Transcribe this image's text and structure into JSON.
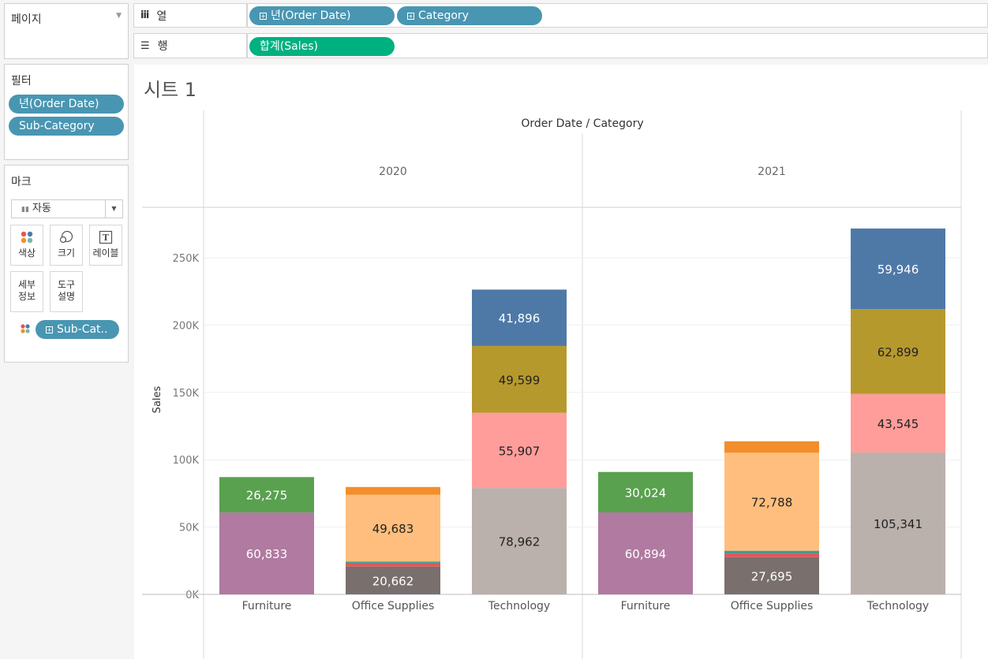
{
  "pages_panel": {
    "title": "페이지"
  },
  "columns_shelf": {
    "label": "열",
    "pills": [
      "년(Order Date)",
      "Category"
    ]
  },
  "rows_shelf": {
    "label": "행",
    "pills": [
      "합계(Sales)"
    ]
  },
  "filters_panel": {
    "title": "필터",
    "pills": [
      "년(Order Date)",
      "Sub-Category"
    ]
  },
  "marks_panel": {
    "title": "마크",
    "mark_type": "자동",
    "buttons": {
      "color": "색상",
      "size": "크기",
      "label": "레이블",
      "detail_1": "세부",
      "detail_2": "정보",
      "tooltip_1": "도구",
      "tooltip_2": "설명"
    },
    "color_pill": "Sub-Cat.."
  },
  "sheet": {
    "title": "시트 1"
  },
  "chart_data": {
    "type": "bar",
    "stacked": true,
    "title": "Order Date / Category",
    "ylabel": "Sales",
    "ylim": [
      0,
      280000
    ],
    "yticks": [
      {
        "v": 0,
        "label": "0K"
      },
      {
        "v": 50000,
        "label": "50K"
      },
      {
        "v": 100000,
        "label": "100K"
      },
      {
        "v": 150000,
        "label": "150K"
      },
      {
        "v": 200000,
        "label": "200K"
      },
      {
        "v": 250000,
        "label": "250K"
      }
    ],
    "panes": [
      {
        "year": "2020",
        "categories": [
          {
            "name": "Furniture",
            "segments": [
              {
                "value": 60833,
                "color": "#b07aa1",
                "label": "60,833",
                "dark": false
              },
              {
                "value": 26275,
                "color": "#59a14f",
                "label": "26,275",
                "dark": false
              }
            ]
          },
          {
            "name": "Office Supplies",
            "segments": [
              {
                "value": 20662,
                "color": "#79706e",
                "label": "20,662",
                "dark": false
              },
              {
                "value": 2200,
                "color": "#e15759",
                "label": "",
                "dark": false
              },
              {
                "value": 1500,
                "color": "#499894",
                "label": "",
                "dark": false
              },
              {
                "value": 49683,
                "color": "#ffbe7d",
                "label": "49,683",
                "dark": true
              },
              {
                "value": 5700,
                "color": "#f28e2b",
                "label": "",
                "dark": false
              }
            ]
          },
          {
            "name": "Technology",
            "segments": [
              {
                "value": 78962,
                "color": "#bab0ac",
                "label": "78,962",
                "dark": true
              },
              {
                "value": 55907,
                "color": "#ff9d9a",
                "label": "55,907",
                "dark": true
              },
              {
                "value": 49599,
                "color": "#b6992d",
                "label": "49,599",
                "dark": true
              },
              {
                "value": 41896,
                "color": "#4e79a7",
                "label": "41,896",
                "dark": false
              }
            ]
          }
        ]
      },
      {
        "year": "2021",
        "categories": [
          {
            "name": "Furniture",
            "segments": [
              {
                "value": 60894,
                "color": "#b07aa1",
                "label": "60,894",
                "dark": false
              },
              {
                "value": 30024,
                "color": "#59a14f",
                "label": "30,024",
                "dark": false
              }
            ]
          },
          {
            "name": "Office Supplies",
            "segments": [
              {
                "value": 27695,
                "color": "#79706e",
                "label": "27,695",
                "dark": false
              },
              {
                "value": 2700,
                "color": "#e15759",
                "label": "",
                "dark": false
              },
              {
                "value": 2000,
                "color": "#499894",
                "label": "",
                "dark": false
              },
              {
                "value": 72788,
                "color": "#ffbe7d",
                "label": "72,788",
                "dark": true
              },
              {
                "value": 8500,
                "color": "#f28e2b",
                "label": "",
                "dark": false
              }
            ]
          },
          {
            "name": "Technology",
            "segments": [
              {
                "value": 105341,
                "color": "#bab0ac",
                "label": "105,341",
                "dark": true
              },
              {
                "value": 43545,
                "color": "#ff9d9a",
                "label": "43,545",
                "dark": true
              },
              {
                "value": 62899,
                "color": "#b6992d",
                "label": "62,899",
                "dark": true
              },
              {
                "value": 59946,
                "color": "#4e79a7",
                "label": "59,946",
                "dark": false
              }
            ]
          }
        ]
      }
    ]
  }
}
